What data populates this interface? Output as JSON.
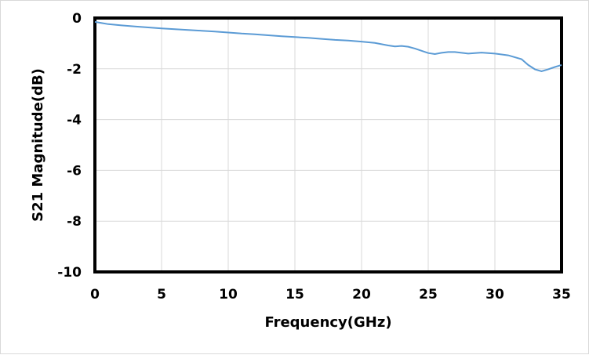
{
  "chart_data": {
    "type": "line",
    "title": "",
    "xlabel": "Frequency(GHz)",
    "ylabel": "S21 Magnitude(dB)",
    "xlim": [
      0,
      35
    ],
    "ylim": [
      -10,
      0
    ],
    "xticks": [
      0,
      5,
      10,
      15,
      20,
      25,
      30,
      35
    ],
    "yticks": [
      0,
      -2,
      -4,
      -6,
      -8,
      -10
    ],
    "xtick_labels": [
      "0",
      "5",
      "10",
      "15",
      "20",
      "25",
      "30",
      "35"
    ],
    "ytick_labels": [
      "0",
      "-2",
      "-4",
      "-6",
      "-8",
      "-10"
    ],
    "grid": true,
    "legend": "none",
    "series": [
      {
        "color": "#5b9bd5",
        "x": [
          0,
          1,
          2,
          3,
          4,
          5,
          6,
          7,
          8,
          9,
          10,
          11,
          12,
          13,
          14,
          15,
          16,
          17,
          18,
          19,
          20,
          21,
          22,
          22.5,
          23,
          23.5,
          24,
          25,
          25.5,
          26,
          26.5,
          27,
          28,
          29,
          30,
          31,
          32,
          32.5,
          33,
          33.5,
          34,
          34.5,
          35
        ],
        "y": [
          -0.15,
          -0.24,
          -0.29,
          -0.33,
          -0.37,
          -0.41,
          -0.44,
          -0.47,
          -0.5,
          -0.53,
          -0.57,
          -0.61,
          -0.64,
          -0.68,
          -0.72,
          -0.75,
          -0.78,
          -0.82,
          -0.86,
          -0.89,
          -0.93,
          -0.98,
          -1.08,
          -1.12,
          -1.1,
          -1.13,
          -1.2,
          -1.38,
          -1.42,
          -1.37,
          -1.34,
          -1.34,
          -1.4,
          -1.36,
          -1.4,
          -1.47,
          -1.62,
          -1.85,
          -2.02,
          -2.1,
          -2.02,
          -1.93,
          -1.85
        ]
      }
    ]
  }
}
